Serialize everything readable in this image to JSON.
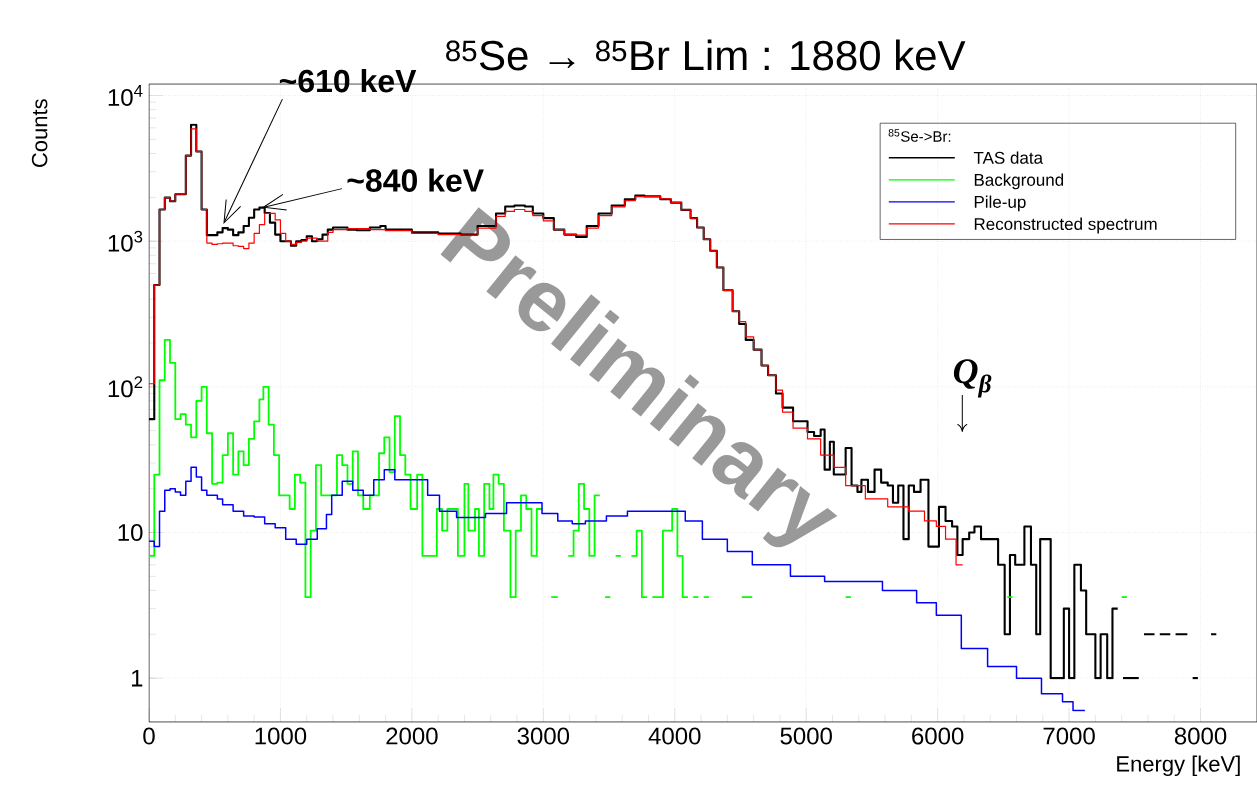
{
  "chart_data": {
    "type": "step",
    "title": "$^{85}$Se → $^{85}$Br Lim : 1880 keV",
    "xlabel": "Energy [keV]",
    "ylabel": "Counts",
    "legend_title": "$^{85}$Se->Br:",
    "xlim": [
      0,
      8430
    ],
    "ylim": [
      0.5,
      12000
    ],
    "log": "y",
    "grid": true,
    "legend": "top right",
    "xticks": [
      0,
      1000,
      2000,
      3000,
      4000,
      5000,
      6000,
      7000,
      8000
    ],
    "yticks": [
      1,
      10,
      {
        "value": 100,
        "label": "10$^{2}$"
      },
      {
        "value": 1000,
        "label": "10$^{3}$"
      },
      {
        "value": 10000,
        "label": "10$^{4}$"
      }
    ],
    "annotations": [
      {
        "text": "~610 keV",
        "x": 566,
        "y": 1310
      },
      {
        "text": "~840 keV",
        "x": 860,
        "y": 1700
      },
      "Q$_{β}$",
      "Preliminary"
    ],
    "series": [
      {
        "name": "TAS data",
        "color": "#000000",
        "x": [
          0,
          40,
          80,
          120,
          160,
          200,
          240,
          280,
          320,
          360,
          400,
          440,
          480,
          520,
          560,
          600,
          640,
          680,
          720,
          760,
          800,
          840,
          880,
          920,
          960,
          1000,
          1040,
          1080,
          1120,
          1160,
          1200,
          1240,
          1280,
          1320,
          1360,
          1400,
          1510,
          1580,
          1680,
          1760,
          1800,
          2000,
          2200,
          2370,
          2500,
          2640,
          2710,
          2780,
          2860,
          2920,
          3000,
          3080,
          3160,
          3250,
          3330,
          3420,
          3520,
          3620,
          3700,
          3770,
          3890,
          3970,
          4050,
          4120,
          4170,
          4220,
          4270,
          4320,
          4370,
          4440,
          4490,
          4540,
          4600,
          4660,
          4710,
          4770,
          4820,
          4900,
          4950,
          5010,
          5060,
          5110,
          5140,
          5180,
          5210,
          5300,
          5345,
          5390,
          5420,
          5470,
          5520,
          5570,
          5620,
          5660,
          5700,
          5740,
          5780,
          5820,
          5870,
          5930,
          6010,
          6060,
          6110,
          6150,
          6190,
          6240,
          6280,
          6330,
          6380,
          6460,
          6510,
          6550,
          6590,
          6660,
          6710,
          6750,
          6780,
          6860,
          6960,
          7000,
          7040,
          7090,
          7130,
          7200,
          7240,
          7290,
          7330,
          7370,
          7410,
          7530,
          7570,
          7650,
          7690,
          7770,
          7810,
          7900,
          7940,
          7980,
          8080,
          8120
        ],
        "values": [
          60,
          500,
          1650,
          1990,
          1880,
          2100,
          2100,
          3870,
          6300,
          4130,
          1650,
          1100,
          1100,
          1150,
          1230,
          1200,
          1100,
          1150,
          1270,
          1450,
          1650,
          1700,
          1560,
          1340,
          1110,
          1000,
          1000,
          930,
          1000,
          1020,
          1080,
          1000,
          1030,
          1110,
          1200,
          1240,
          1200,
          1190,
          1240,
          1270,
          1200,
          1150,
          1130,
          1110,
          1270,
          1550,
          1730,
          1760,
          1730,
          1550,
          1440,
          1200,
          1110,
          1070,
          1270,
          1550,
          1760,
          1940,
          2060,
          2030,
          1940,
          1840,
          1640,
          1440,
          1240,
          1030,
          860,
          660,
          460,
          330,
          270,
          210,
          180,
          140,
          120,
          90,
          72,
          58,
          58,
          49,
          46,
          51,
          27,
          42,
          25,
          38,
          21,
          19,
          23,
          19,
          27,
          22,
          21,
          16,
          21,
          9,
          21,
          19,
          23,
          8,
          15,
          12,
          11,
          7,
          9,
          10,
          11,
          9,
          9,
          6,
          2,
          7,
          6,
          11,
          6,
          2,
          9,
          1,
          3,
          1,
          6,
          4,
          2,
          1,
          2,
          1,
          3,
          null,
          1,
          null,
          2,
          null,
          2,
          null,
          2,
          null,
          1,
          null,
          2,
          2
        ]
      },
      {
        "name": "Background",
        "color": "#00ff00",
        "x": [
          0,
          40,
          80,
          120,
          160,
          200,
          240,
          280,
          320,
          360,
          400,
          440,
          480,
          520,
          560,
          600,
          640,
          680,
          720,
          760,
          800,
          840,
          870,
          910,
          950,
          990,
          1070,
          1110,
          1150,
          1190,
          1230,
          1270,
          1310,
          1430,
          1470,
          1510,
          1550,
          1590,
          1630,
          1680,
          1750,
          1790,
          1830,
          1870,
          1910,
          1950,
          1990,
          2040,
          2080,
          2190,
          2230,
          2270,
          2350,
          2400,
          2430,
          2480,
          2510,
          2550,
          2590,
          2620,
          2660,
          2700,
          2750,
          2790,
          2830,
          2870,
          2910,
          2950,
          2990,
          3060,
          3110,
          3190,
          3230,
          3270,
          3310,
          3350,
          3390,
          3430,
          3470,
          3510,
          3550,
          3590,
          3670,
          3710,
          3750,
          3790,
          3830,
          3910,
          3980,
          4020,
          4060,
          4100,
          4140,
          4180,
          4220,
          4260,
          4510,
          4590,
          5300,
          5340,
          6530,
          6570,
          7400,
          7440
        ],
        "values": [
          6.9,
          25,
          111,
          210,
          146,
          60,
          65,
          55,
          45,
          80,
          100,
          48,
          21.6,
          22,
          34,
          48,
          25,
          36,
          29,
          44,
          58,
          82,
          100,
          55,
          34,
          18,
          14.5,
          25,
          22,
          3.6,
          10.3,
          29,
          18,
          34,
          29,
          21.6,
          36,
          18,
          14.5,
          18,
          35,
          45,
          26,
          63,
          34,
          25,
          14.5,
          25,
          6.9,
          14.5,
          10.3,
          14.5,
          6.9,
          21.6,
          10.3,
          14.5,
          6.9,
          21.6,
          14.5,
          25,
          21.6,
          10.3,
          3.6,
          10.3,
          18,
          14.5,
          6.9,
          14.5,
          null,
          3.6,
          null,
          6.9,
          10.3,
          21.6,
          14.5,
          6.9,
          18,
          null,
          3.6,
          null,
          6.9,
          null,
          6.9,
          10.3,
          3.6,
          null,
          3.6,
          10.3,
          14.5,
          6.9,
          3.6,
          null,
          3.6,
          null,
          3.6,
          null,
          3.6,
          null,
          3.6,
          null,
          3.6,
          null,
          3.6,
          3.6
        ]
      },
      {
        "name": "Pile-up",
        "color": "#0000ff",
        "x": [
          0,
          40,
          80,
          120,
          160,
          200,
          240,
          280,
          320,
          360,
          400,
          440,
          520,
          560,
          640,
          720,
          800,
          880,
          960,
          1040,
          1120,
          1200,
          1280,
          1350,
          1390,
          1470,
          1550,
          1630,
          1710,
          1790,
          1870,
          2120,
          2210,
          2340,
          2560,
          2720,
          2990,
          3110,
          3220,
          3320,
          3480,
          3640,
          3980,
          4080,
          4210,
          4400,
          4590,
          4880,
          5140,
          5580,
          5840,
          5990,
          6180,
          6380,
          6600,
          6790,
          6950,
          7030,
          7120
        ],
        "values": [
          8.7,
          8,
          14,
          19.5,
          20,
          19,
          18,
          22.5,
          28,
          24,
          19.5,
          18,
          17,
          15.5,
          14,
          13,
          12.8,
          11.5,
          10.8,
          9,
          8.3,
          9,
          10.6,
          13.3,
          18,
          22.5,
          19.5,
          18,
          23,
          27,
          23,
          18,
          14,
          12.7,
          13.5,
          16,
          13.5,
          12,
          11.5,
          12,
          13,
          14,
          14,
          12,
          9,
          7.4,
          6,
          5,
          4.6,
          4,
          3.3,
          2.7,
          1.6,
          1.2,
          1,
          0.78,
          0.69,
          0.6,
          0.6
        ]
      },
      {
        "name": "Reconstructed spectrum",
        "color": "#ff0000",
        "x": [
          0,
          40,
          80,
          120,
          160,
          200,
          240,
          280,
          320,
          360,
          400,
          440,
          480,
          520,
          560,
          600,
          640,
          680,
          720,
          760,
          800,
          840,
          880,
          920,
          960,
          1000,
          1040,
          1080,
          1120,
          1160,
          1200,
          1280,
          1360,
          1400,
          1510,
          1680,
          1800,
          2000,
          2200,
          2370,
          2500,
          2640,
          2710,
          2780,
          2860,
          2920,
          3000,
          3080,
          3160,
          3250,
          3330,
          3420,
          3520,
          3620,
          3700,
          3770,
          3890,
          3970,
          4050,
          4120,
          4170,
          4220,
          4270,
          4320,
          4370,
          4440,
          4490,
          4540,
          4600,
          4660,
          4710,
          4770,
          4820,
          4900,
          5010,
          5110,
          5210,
          5300,
          5450,
          5620,
          5780,
          5900,
          5990,
          6060,
          6140,
          6190
        ],
        "values": [
          105,
          500,
          1650,
          1990,
          1880,
          2100,
          2100,
          3870,
          5900,
          4130,
          1650,
          970,
          950,
          960,
          970,
          970,
          930,
          920,
          890,
          970,
          1130,
          1300,
          1550,
          1550,
          1400,
          1130,
          1000,
          950,
          980,
          1000,
          1050,
          1000,
          1150,
          1200,
          1220,
          1200,
          1180,
          1130,
          1110,
          1100,
          1230,
          1480,
          1600,
          1650,
          1600,
          1500,
          1380,
          1200,
          1110,
          1100,
          1230,
          1500,
          1720,
          1900,
          2020,
          2030,
          1950,
          1840,
          1640,
          1440,
          1240,
          1030,
          860,
          660,
          460,
          330,
          280,
          220,
          180,
          140,
          120,
          95,
          67,
          52,
          44,
          34,
          28,
          21,
          17,
          15,
          14,
          12,
          11,
          9,
          6,
          6
        ]
      }
    ]
  }
}
